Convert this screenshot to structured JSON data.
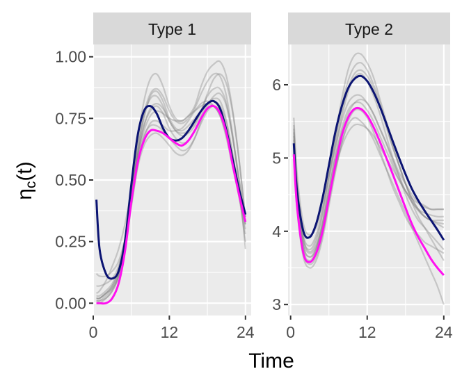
{
  "chart_data": {
    "type": "line",
    "xlabel": "Time",
    "ylabel_main": "η",
    "ylabel_sub": "c",
    "ylabel_arg": "(t)",
    "colors": {
      "panel_bg": "#ebebeb",
      "strip_bg": "#d9d9d9",
      "grid": "#ffffff",
      "axis_text": "#4d4d4d",
      "background_curves": "#7f7f7f",
      "navy_curve": "#0b1473",
      "magenta_curve": "#ff10f0"
    },
    "panels": [
      {
        "strip": "Type 1",
        "xlim": [
          0,
          24.9
        ],
        "ylim": [
          -0.05,
          1.05
        ],
        "xticks": [
          0,
          12,
          24
        ],
        "xtick_labels": [
          "0",
          "12",
          "24"
        ],
        "yticks": [
          0,
          0.25,
          0.5,
          0.75,
          1
        ],
        "ytick_labels": [
          "0.00",
          "0.25",
          "0.50",
          "0.75",
          "1.00"
        ],
        "x": [
          0.5,
          1,
          2,
          3,
          4,
          5,
          6,
          7,
          8,
          9,
          10,
          11,
          12,
          13,
          14,
          15,
          16,
          17,
          18,
          19,
          20,
          21,
          22,
          23,
          24
        ],
        "background_series": [
          {
            "name": "subject-1",
            "values": [
              0.01,
              0.01,
              0.03,
              0.06,
              0.12,
              0.25,
              0.45,
              0.66,
              0.82,
              0.91,
              0.93,
              0.88,
              0.8,
              0.75,
              0.74,
              0.76,
              0.8,
              0.88,
              0.94,
              0.97,
              0.98,
              0.92,
              0.78,
              0.58,
              0.33
            ]
          },
          {
            "name": "subject-2",
            "values": [
              0.02,
              0.02,
              0.04,
              0.07,
              0.13,
              0.26,
              0.46,
              0.64,
              0.77,
              0.85,
              0.87,
              0.84,
              0.78,
              0.74,
              0.73,
              0.75,
              0.79,
              0.85,
              0.9,
              0.93,
              0.92,
              0.84,
              0.68,
              0.5,
              0.3
            ]
          },
          {
            "name": "subject-3",
            "values": [
              0.04,
              0.05,
              0.09,
              0.15,
              0.22,
              0.32,
              0.46,
              0.6,
              0.7,
              0.76,
              0.78,
              0.77,
              0.75,
              0.74,
              0.74,
              0.76,
              0.78,
              0.8,
              0.81,
              0.8,
              0.76,
              0.68,
              0.56,
              0.43,
              0.28
            ]
          },
          {
            "name": "subject-4",
            "values": [
              0.03,
              0.03,
              0.05,
              0.08,
              0.14,
              0.26,
              0.44,
              0.6,
              0.72,
              0.78,
              0.8,
              0.77,
              0.71,
              0.67,
              0.65,
              0.66,
              0.7,
              0.76,
              0.81,
              0.83,
              0.82,
              0.74,
              0.6,
              0.44,
              0.25
            ]
          },
          {
            "name": "subject-5",
            "values": [
              0.0,
              0.0,
              0.02,
              0.05,
              0.11,
              0.23,
              0.41,
              0.58,
              0.68,
              0.72,
              0.72,
              0.7,
              0.67,
              0.64,
              0.62,
              0.63,
              0.67,
              0.73,
              0.78,
              0.8,
              0.78,
              0.71,
              0.59,
              0.46,
              0.33
            ]
          },
          {
            "name": "subject-6",
            "values": [
              0.12,
              0.11,
              0.11,
              0.13,
              0.17,
              0.26,
              0.4,
              0.56,
              0.67,
              0.73,
              0.74,
              0.72,
              0.7,
              0.7,
              0.71,
              0.74,
              0.78,
              0.81,
              0.82,
              0.8,
              0.76,
              0.67,
              0.55,
              0.43,
              0.32
            ]
          },
          {
            "name": "subject-7",
            "values": [
              0.07,
              0.07,
              0.08,
              0.1,
              0.15,
              0.26,
              0.43,
              0.6,
              0.72,
              0.79,
              0.81,
              0.79,
              0.74,
              0.7,
              0.69,
              0.7,
              0.73,
              0.78,
              0.84,
              0.87,
              0.87,
              0.81,
              0.67,
              0.5,
              0.35
            ]
          },
          {
            "name": "subject-8",
            "values": [
              0.02,
              0.02,
              0.04,
              0.06,
              0.11,
              0.22,
              0.39,
              0.55,
              0.64,
              0.68,
              0.69,
              0.67,
              0.64,
              0.61,
              0.6,
              0.62,
              0.67,
              0.74,
              0.8,
              0.84,
              0.85,
              0.8,
              0.67,
              0.48,
              0.22
            ]
          },
          {
            "name": "subject-9",
            "values": [
              0.02,
              0.02,
              0.04,
              0.07,
              0.13,
              0.25,
              0.43,
              0.61,
              0.75,
              0.84,
              0.86,
              0.82,
              0.75,
              0.71,
              0.7,
              0.72,
              0.75,
              0.78,
              0.81,
              0.82,
              0.8,
              0.73,
              0.6,
              0.46,
              0.32
            ]
          },
          {
            "name": "subject-10",
            "values": [
              0.01,
              0.01,
              0.02,
              0.05,
              0.11,
              0.24,
              0.43,
              0.62,
              0.76,
              0.83,
              0.84,
              0.8,
              0.74,
              0.7,
              0.68,
              0.69,
              0.72,
              0.78,
              0.85,
              0.91,
              0.93,
              0.89,
              0.77,
              0.58,
              0.35
            ]
          }
        ],
        "navy_values": [
          0.42,
          0.22,
          0.12,
          0.1,
          0.13,
          0.25,
          0.48,
          0.68,
          0.78,
          0.8,
          0.77,
          0.71,
          0.67,
          0.66,
          0.67,
          0.7,
          0.74,
          0.78,
          0.81,
          0.82,
          0.79,
          0.7,
          0.58,
          0.46,
          0.36
        ],
        "magenta_values": [
          0.0,
          0.0,
          0.0,
          0.02,
          0.08,
          0.21,
          0.41,
          0.57,
          0.66,
          0.7,
          0.7,
          0.69,
          0.67,
          0.65,
          0.64,
          0.66,
          0.7,
          0.75,
          0.79,
          0.8,
          0.77,
          0.69,
          0.56,
          0.44,
          0.33
        ]
      },
      {
        "strip": "Type 2",
        "xlim": [
          -0.4,
          25
        ],
        "ylim": [
          2.85,
          6.55
        ],
        "xticks": [
          0,
          12,
          24
        ],
        "xtick_labels": [
          "0",
          "12",
          "24"
        ],
        "yticks": [
          3,
          4,
          5,
          6
        ],
        "ytick_labels": [
          "3",
          "4",
          "5",
          "6"
        ],
        "x": [
          0.5,
          1,
          2,
          3,
          4,
          5,
          6,
          7,
          8,
          9,
          10,
          11,
          12,
          13,
          14,
          15,
          16,
          17,
          18,
          19,
          20,
          21,
          22,
          23,
          24
        ],
        "background_series": [
          {
            "name": "subject-1",
            "values": [
              5.45,
              4.7,
              3.95,
              3.8,
              3.95,
              4.3,
              4.8,
              5.3,
              5.8,
              6.2,
              6.4,
              6.42,
              6.3,
              6.1,
              5.8,
              5.5,
              5.2,
              4.9,
              4.65,
              4.45,
              4.3,
              4.2,
              4.15,
              4.1,
              4.05
            ]
          },
          {
            "name": "subject-2",
            "values": [
              5.3,
              4.5,
              3.75,
              3.6,
              3.75,
              4.1,
              4.6,
              5.1,
              5.55,
              5.9,
              6.1,
              6.15,
              6.05,
              5.85,
              5.6,
              5.3,
              5.0,
              4.75,
              4.5,
              4.3,
              4.15,
              4.05,
              3.95,
              3.85,
              3.75
            ]
          },
          {
            "name": "subject-3",
            "values": [
              5.55,
              4.8,
              4.1,
              3.95,
              4.05,
              4.35,
              4.75,
              5.15,
              5.5,
              5.75,
              5.85,
              5.85,
              5.75,
              5.6,
              5.4,
              5.2,
              5.0,
              4.8,
              4.65,
              4.5,
              4.4,
              4.35,
              4.3,
              4.3,
              4.3
            ]
          },
          {
            "name": "subject-4",
            "values": [
              5.1,
              4.4,
              3.7,
              3.55,
              3.65,
              3.95,
              4.4,
              4.85,
              5.2,
              5.45,
              5.55,
              5.5,
              5.4,
              5.25,
              5.05,
              4.85,
              4.65,
              4.45,
              4.25,
              4.05,
              3.85,
              3.65,
              3.45,
              3.25,
              3.0
            ]
          },
          {
            "name": "subject-5",
            "values": [
              5.2,
              4.5,
              3.85,
              3.7,
              3.8,
              4.1,
              4.55,
              5.0,
              5.4,
              5.65,
              5.75,
              5.75,
              5.65,
              5.5,
              5.3,
              5.1,
              4.9,
              4.7,
              4.55,
              4.4,
              4.3,
              4.25,
              4.22,
              4.2,
              4.2
            ]
          },
          {
            "name": "subject-6",
            "values": [
              5.0,
              4.3,
              3.65,
              3.5,
              3.6,
              3.9,
              4.35,
              4.8,
              5.2,
              5.5,
              5.65,
              5.65,
              5.55,
              5.35,
              5.1,
              4.85,
              4.6,
              4.4,
              4.2,
              4.05,
              3.95,
              3.85,
              3.8,
              3.75,
              3.7
            ]
          },
          {
            "name": "subject-7",
            "values": [
              5.4,
              4.65,
              3.9,
              3.75,
              3.9,
              4.25,
              4.75,
              5.25,
              5.7,
              6.05,
              6.25,
              6.3,
              6.2,
              6.0,
              5.75,
              5.45,
              5.15,
              4.9,
              4.65,
              4.45,
              4.3,
              4.2,
              4.15,
              4.15,
              4.15
            ]
          },
          {
            "name": "subject-8",
            "values": [
              5.25,
              4.55,
              3.8,
              3.65,
              3.78,
              4.1,
              4.55,
              5.0,
              5.35,
              5.6,
              5.75,
              5.8,
              5.75,
              5.6,
              5.4,
              5.2,
              4.95,
              4.75,
              4.55,
              4.4,
              4.28,
              4.2,
              4.15,
              4.12,
              4.1
            ]
          },
          {
            "name": "subject-9",
            "values": [
              5.15,
              4.45,
              3.8,
              3.65,
              3.75,
              4.05,
              4.45,
              4.85,
              5.15,
              5.35,
              5.45,
              5.45,
              5.4,
              5.3,
              5.15,
              5.0,
              4.85,
              4.7,
              4.55,
              4.45,
              4.38,
              4.33,
              4.3,
              4.3,
              4.3
            ]
          },
          {
            "name": "subject-10",
            "values": [
              5.35,
              4.6,
              3.9,
              3.72,
              3.85,
              4.2,
              4.7,
              5.2,
              5.62,
              5.95,
              6.15,
              6.2,
              6.12,
              5.95,
              5.7,
              5.42,
              5.15,
              4.9,
              4.65,
              4.4,
              4.2,
              4.05,
              3.9,
              3.75,
              3.6
            ]
          }
        ],
        "navy_values": [
          5.2,
          4.55,
          4.0,
          3.92,
          4.1,
          4.45,
          4.9,
          5.35,
          5.7,
          5.95,
          6.08,
          6.12,
          6.05,
          5.9,
          5.7,
          5.47,
          5.23,
          5.0,
          4.78,
          4.58,
          4.42,
          4.28,
          4.15,
          4.02,
          3.88
        ],
        "magenta_values": [
          5.05,
          4.35,
          3.7,
          3.58,
          3.7,
          4.0,
          4.45,
          4.9,
          5.3,
          5.55,
          5.67,
          5.67,
          5.58,
          5.42,
          5.22,
          5.0,
          4.78,
          4.55,
          4.32,
          4.1,
          3.92,
          3.77,
          3.62,
          3.5,
          3.4
        ]
      }
    ]
  }
}
